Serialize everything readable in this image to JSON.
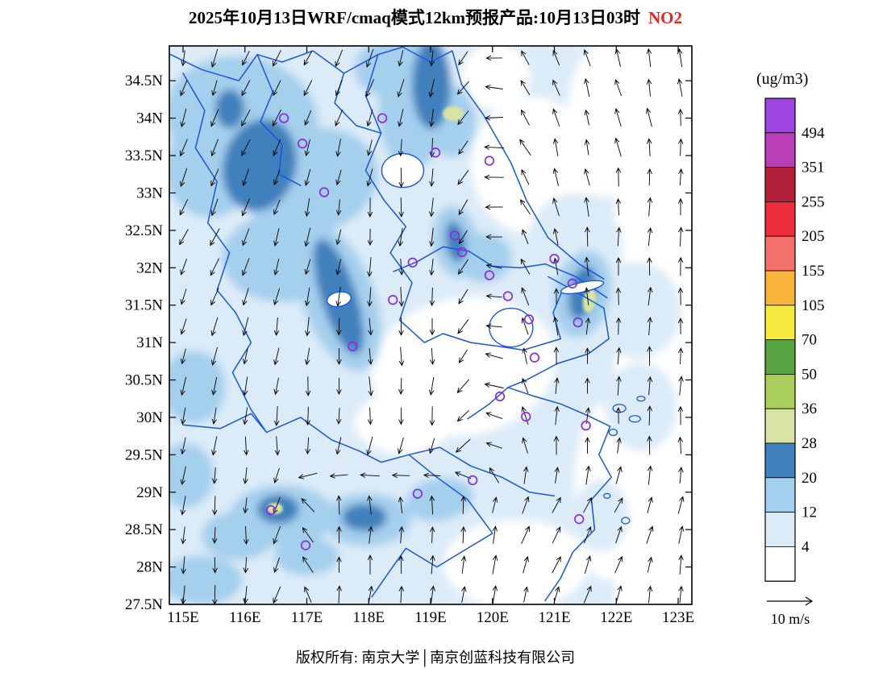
{
  "title": {
    "main": "2025年10月13日WRF/cmaq模式12km预报产品:10月13日03时",
    "species": "NO2"
  },
  "colors": {
    "axis_label_red": "#E8251F",
    "boundary_blue": "#1C55DC",
    "marker_purple": "#8A2BE2",
    "arrow_black": "#000000"
  },
  "axes": {
    "lat_tick_labels": [
      "34.5N",
      "34N",
      "33.5N",
      "33N",
      "32.5N",
      "32N",
      "31.5N",
      "31N",
      "30.5N",
      "30N",
      "29.5N",
      "29N",
      "28.5N",
      "28N",
      "27.5N"
    ],
    "lon_tick_labels": [
      "115E",
      "116E",
      "117E",
      "118E",
      "119E",
      "120E",
      "121E",
      "122E",
      "123E"
    ]
  },
  "colorbar": {
    "unit": "(ug/m3)",
    "boundary_labels_top_to_bottom": [
      "494",
      "351",
      "255",
      "205",
      "155",
      "105",
      "70",
      "50",
      "36",
      "28",
      "20",
      "12",
      "4"
    ],
    "segment_colors_top_to_bottom": [
      "#9E44E0",
      "#BA3EB5",
      "#B2203A",
      "#EE2D3C",
      "#F4726B",
      "#F9B43A",
      "#F5EA3D",
      "#58A343",
      "#A9CE5C",
      "#D8E4A4",
      "#4080BC",
      "#A4CFED",
      "#DCEBF8",
      "#FFFFFF"
    ]
  },
  "wind_legend": {
    "label": "10 m/s"
  },
  "footer": {
    "text": "版权所有: 南京大学│南京创蓝科技有限公司"
  },
  "map": {
    "station_markers": [
      [
        116.63,
        34.0
      ],
      [
        116.93,
        33.66
      ],
      [
        118.22,
        34.0
      ],
      [
        119.08,
        33.54
      ],
      [
        119.95,
        33.43
      ],
      [
        117.28,
        33.01
      ],
      [
        119.39,
        32.43
      ],
      [
        119.51,
        32.21
      ],
      [
        118.71,
        32.07
      ],
      [
        121.0,
        32.12
      ],
      [
        119.95,
        31.9
      ],
      [
        121.29,
        31.79
      ],
      [
        118.39,
        31.57
      ],
      [
        120.25,
        31.62
      ],
      [
        120.59,
        31.31
      ],
      [
        121.38,
        31.27
      ],
      [
        117.74,
        30.95
      ],
      [
        120.68,
        30.8
      ],
      [
        120.12,
        30.28
      ],
      [
        120.54,
        30.01
      ],
      [
        121.51,
        29.89
      ],
      [
        119.68,
        29.16
      ],
      [
        118.79,
        28.98
      ],
      [
        121.4,
        28.64
      ],
      [
        116.42,
        28.76
      ],
      [
        116.98,
        28.29
      ]
    ]
  },
  "chart_data": {
    "type": "heatmap",
    "title": "2025年10月13日WRF/cmaq模式12km预报产品:10月13日03时 NO2",
    "species": "NO2",
    "unit": "ug/m3",
    "projection_extent": {
      "lon": [
        114.8,
        123.2
      ],
      "lat": [
        27.5,
        35.0
      ]
    },
    "lon_ticks": [
      115,
      116,
      117,
      118,
      119,
      120,
      121,
      122,
      123
    ],
    "lat_ticks": [
      27.5,
      28,
      28.5,
      29,
      29.5,
      30,
      30.5,
      31,
      31.5,
      32,
      32.5,
      33,
      33.5,
      34,
      34.5
    ],
    "contour_levels": [
      4,
      12,
      20,
      28,
      36,
      50,
      70,
      105,
      155,
      205,
      255,
      351,
      494
    ],
    "level_colors_low_to_high": [
      "#FFFFFF",
      "#DCEBF8",
      "#A4CFED",
      "#4080BC",
      "#D8E4A4",
      "#A9CE5C",
      "#58A343",
      "#F5EA3D",
      "#F9B43A",
      "#F4726B",
      "#EE2D3C",
      "#B2203A",
      "#BA3EB5",
      "#9E44E0"
    ],
    "value_range_shown": "mostly 0-36 ug/m3: white to pale/medium blue, dark-blue cores, a few pale yellow-green spots (28-36)",
    "high_value_cores_approx": [
      {
        "lon": 116.2,
        "lat": 33.4,
        "level": "20-28"
      },
      {
        "lon": 119.0,
        "lat": 34.4,
        "level": "20-28"
      },
      {
        "lon": 117.5,
        "lat": 31.6,
        "level": "20-28"
      },
      {
        "lon": 116.5,
        "lat": 28.8,
        "level": "20-28"
      },
      {
        "lon": 118.0,
        "lat": 28.7,
        "level": "20-28"
      },
      {
        "lon": 121.6,
        "lat": 31.6,
        "level": "20-28"
      },
      {
        "lon": 119.4,
        "lat": 34.1,
        "level": "28-36"
      },
      {
        "lon": 121.57,
        "lat": 31.56,
        "level": "28-36"
      },
      {
        "lon": 116.5,
        "lat": 28.78,
        "level": "28-36"
      }
    ],
    "wind_overlay": {
      "reference_speed": "10 m/s",
      "pattern": "southward-pointing vectors (northerly flow) over inland west; northward-pointing vectors (southerly flow) over the eastern sea; convergence band near 119.5-120.5E"
    }
  }
}
